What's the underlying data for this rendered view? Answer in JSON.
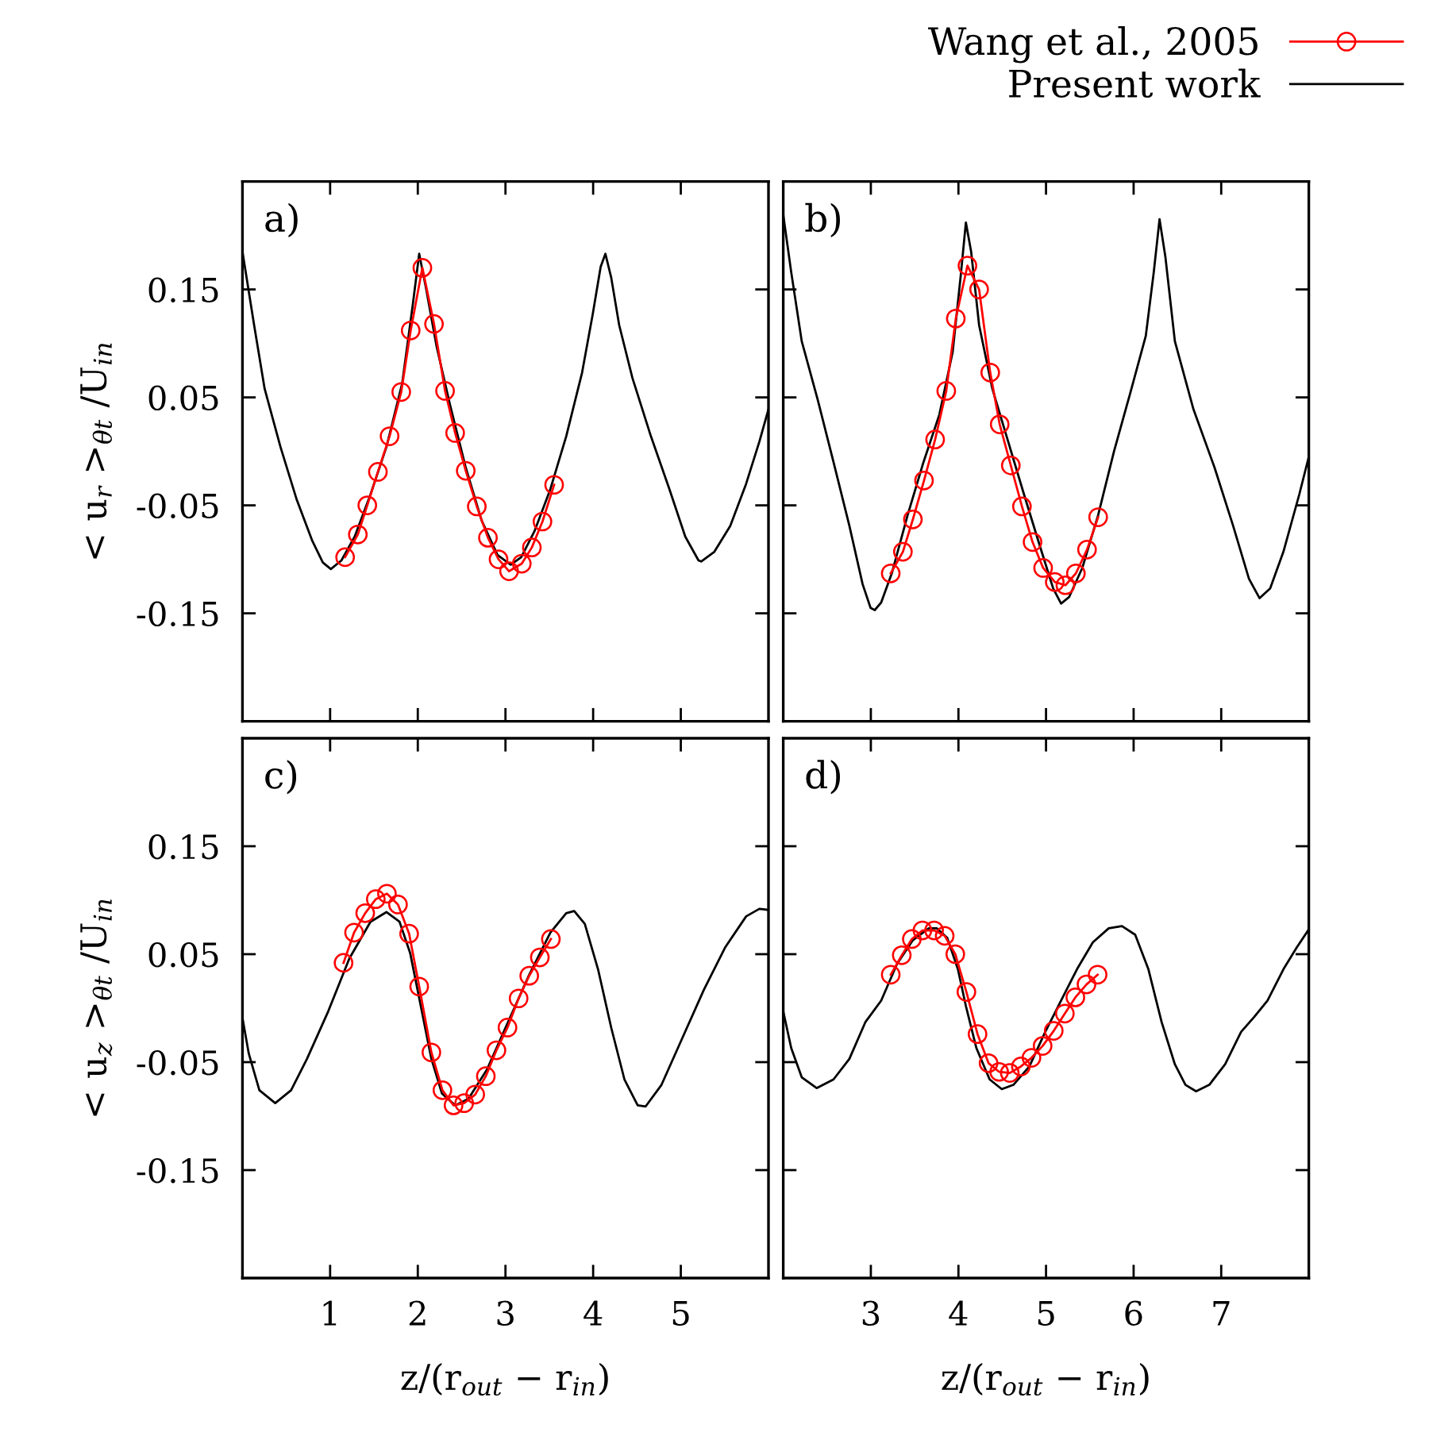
{
  "chart_data": [
    {
      "type": "line",
      "title": "a)",
      "legend": "top right",
      "ylabel": "< u$_{r}$ >$_{θt}$ /U$_{in}$",
      "xlim": [
        0,
        6
      ],
      "ylim": [
        -0.25,
        0.25
      ],
      "xticks": [
        1,
        2,
        3,
        4,
        5
      ],
      "yticks": [
        0.15,
        0.05,
        -0.05,
        -0.15
      ],
      "tick_labels": "y",
      "series": [
        {
          "name": "Present work",
          "color": "#000000",
          "marker": "none",
          "line_style": "solid",
          "x": [
            0,
            0.133,
            0.253,
            0.434,
            0.616,
            0.797,
            0.917,
            1.008,
            1.129,
            1.28,
            1.46,
            1.642,
            1.822,
            1.943,
            2.016,
            2.094,
            2.215,
            2.365,
            2.547,
            2.728,
            2.909,
            3.06,
            3.18,
            3.331,
            3.512,
            3.693,
            3.874,
            3.995,
            4.086,
            4.14,
            4.206,
            4.297,
            4.448,
            4.659,
            4.87,
            5.051,
            5.202,
            5.232,
            5.383,
            5.564,
            5.745,
            5.896,
            6.0
          ],
          "values": [
            0.185,
            0.117,
            0.058,
            0.004,
            -0.044,
            -0.083,
            -0.103,
            -0.109,
            -0.101,
            -0.079,
            -0.04,
            0.004,
            0.063,
            0.136,
            0.183,
            0.151,
            0.097,
            0.044,
            -0.015,
            -0.064,
            -0.096,
            -0.105,
            -0.098,
            -0.074,
            -0.035,
            0.014,
            0.073,
            0.127,
            0.171,
            0.183,
            0.161,
            0.117,
            0.068,
            0.014,
            -0.035,
            -0.079,
            -0.101,
            -0.102,
            -0.093,
            -0.069,
            -0.03,
            0.009,
            0.039
          ]
        },
        {
          "name": "Wang et al., 2005",
          "color": "#ff0000",
          "marker": "circle",
          "line_style": "solid",
          "x": [
            1.171,
            1.316,
            1.424,
            1.545,
            1.678,
            1.811,
            1.919,
            2.052,
            2.185,
            2.311,
            2.426,
            2.547,
            2.673,
            2.8,
            2.921,
            3.041,
            3.186,
            3.301,
            3.422,
            3.555
          ],
          "values": [
            -0.098,
            -0.077,
            -0.05,
            -0.019,
            0.014,
            0.055,
            0.112,
            0.17,
            0.118,
            0.056,
            0.017,
            -0.018,
            -0.051,
            -0.08,
            -0.1,
            -0.111,
            -0.104,
            -0.089,
            -0.065,
            -0.031
          ]
        }
      ]
    },
    {
      "type": "line",
      "title": "b)",
      "xlim": [
        2,
        8
      ],
      "ylim": [
        -0.25,
        0.25
      ],
      "xticks": [
        3,
        4,
        5,
        6,
        7
      ],
      "yticks": [
        0.15,
        0.05,
        -0.05,
        -0.15
      ],
      "tick_labels": false,
      "series": [
        {
          "name": "Present work",
          "color": "#000000",
          "marker": "none",
          "line_style": "solid",
          "x": [
            2.0,
            2.091,
            2.211,
            2.393,
            2.574,
            2.755,
            2.906,
            2.997,
            3.045,
            3.118,
            3.239,
            3.42,
            3.601,
            3.782,
            3.934,
            4.024,
            4.085,
            4.145,
            4.236,
            4.387,
            4.568,
            4.749,
            4.931,
            5.082,
            5.172,
            5.263,
            5.414,
            5.595,
            5.776,
            5.958,
            6.139,
            6.23,
            6.296,
            6.363,
            6.471,
            6.683,
            6.924,
            7.136,
            7.317,
            7.438,
            7.559,
            7.71,
            7.891,
            8.0
          ],
          "values": [
            0.219,
            0.166,
            0.102,
            0.048,
            -0.01,
            -0.069,
            -0.123,
            -0.145,
            -0.147,
            -0.14,
            -0.113,
            -0.059,
            -0.01,
            0.034,
            0.092,
            0.161,
            0.212,
            0.185,
            0.117,
            0.058,
            0.009,
            -0.04,
            -0.088,
            -0.127,
            -0.141,
            -0.135,
            -0.108,
            -0.059,
            0.0,
            0.053,
            0.107,
            0.166,
            0.215,
            0.18,
            0.102,
            0.039,
            -0.015,
            -0.069,
            -0.118,
            -0.136,
            -0.127,
            -0.093,
            -0.04,
            -0.005
          ]
        },
        {
          "name": "Wang et al., 2005",
          "color": "#ff0000",
          "marker": "circle",
          "line_style": "solid",
          "x": [
            3.227,
            3.366,
            3.48,
            3.607,
            3.734,
            3.861,
            3.97,
            4.103,
            4.236,
            4.363,
            4.471,
            4.598,
            4.725,
            4.846,
            4.967,
            5.1,
            5.221,
            5.341,
            5.468,
            5.595
          ],
          "values": [
            -0.113,
            -0.093,
            -0.063,
            -0.027,
            0.011,
            0.056,
            0.123,
            0.172,
            0.15,
            0.073,
            0.025,
            -0.013,
            -0.051,
            -0.084,
            -0.108,
            -0.121,
            -0.124,
            -0.113,
            -0.091,
            -0.061
          ]
        }
      ]
    },
    {
      "type": "line",
      "title": "c)",
      "xlabel": "z/(r$_{out}$ − r$_{in}$)",
      "ylabel": "< u$_{z}$ >$_{θt}$ /U$_{in}$",
      "xlim": [
        0,
        6
      ],
      "ylim": [
        -0.25,
        0.25
      ],
      "xticks": [
        1,
        2,
        3,
        4,
        5
      ],
      "yticks": [
        0.15,
        0.05,
        -0.05,
        -0.15
      ],
      "series": [
        {
          "name": "Present work",
          "color": "#000000",
          "marker": "none",
          "line_style": "solid",
          "x": [
            0,
            0.072,
            0.193,
            0.374,
            0.555,
            0.736,
            0.978,
            1.219,
            1.46,
            1.642,
            1.792,
            1.913,
            2.034,
            2.155,
            2.275,
            2.426,
            2.577,
            2.788,
            3.029,
            3.271,
            3.512,
            3.693,
            3.784,
            3.905,
            4.056,
            4.206,
            4.357,
            4.508,
            4.599,
            4.78,
            5.021,
            5.263,
            5.504,
            5.745,
            5.896,
            6.0
          ],
          "values": [
            -0.009,
            -0.042,
            -0.076,
            -0.088,
            -0.076,
            -0.047,
            -0.003,
            0.046,
            0.08,
            0.089,
            0.08,
            0.051,
            0.002,
            -0.047,
            -0.079,
            -0.09,
            -0.084,
            -0.057,
            -0.013,
            0.031,
            0.07,
            0.088,
            0.09,
            0.078,
            0.036,
            -0.018,
            -0.066,
            -0.09,
            -0.091,
            -0.071,
            -0.027,
            0.017,
            0.056,
            0.085,
            0.092,
            0.091
          ]
        },
        {
          "name": "Wang et al., 2005",
          "color": "#ff0000",
          "marker": "circle",
          "line_style": "solid",
          "x": [
            1.153,
            1.273,
            1.4,
            1.521,
            1.648,
            1.774,
            1.901,
            2.016,
            2.155,
            2.281,
            2.408,
            2.529,
            2.655,
            2.776,
            2.897,
            3.023,
            3.15,
            3.271,
            3.392,
            3.518
          ],
          "values": [
            0.042,
            0.07,
            0.088,
            0.101,
            0.106,
            0.096,
            0.069,
            0.02,
            -0.041,
            -0.076,
            -0.09,
            -0.088,
            -0.08,
            -0.063,
            -0.039,
            -0.018,
            0.009,
            0.03,
            0.047,
            0.064
          ]
        }
      ]
    },
    {
      "type": "line",
      "title": "d)",
      "xlabel": "z/(r$_{out}$ − r$_{in}$)",
      "xlim": [
        2,
        8
      ],
      "ylim": [
        -0.25,
        0.25
      ],
      "xticks": [
        3,
        4,
        5,
        6,
        7
      ],
      "yticks": [
        0.15,
        0.05,
        -0.05,
        -0.15
      ],
      "tick_labels": "x",
      "series": [
        {
          "name": "Present work",
          "color": "#000000",
          "marker": "none",
          "line_style": "solid",
          "x": [
            2.0,
            2.091,
            2.211,
            2.381,
            2.574,
            2.755,
            2.937,
            3.118,
            3.299,
            3.48,
            3.662,
            3.752,
            3.873,
            3.994,
            4.085,
            4.205,
            4.356,
            4.495,
            4.628,
            4.81,
            4.991,
            5.172,
            5.353,
            5.535,
            5.716,
            5.867,
            6.018,
            6.169,
            6.32,
            6.471,
            6.592,
            6.713,
            6.864,
            7.045,
            7.227,
            7.378,
            7.529,
            7.71,
            7.861,
            8.0
          ],
          "values": [
            -0.003,
            -0.037,
            -0.064,
            -0.074,
            -0.066,
            -0.047,
            -0.013,
            0.007,
            0.041,
            0.063,
            0.074,
            0.074,
            0.065,
            0.036,
            0.002,
            -0.037,
            -0.066,
            -0.075,
            -0.071,
            -0.054,
            -0.022,
            0.007,
            0.036,
            0.061,
            0.074,
            0.076,
            0.068,
            0.036,
            -0.013,
            -0.052,
            -0.071,
            -0.077,
            -0.071,
            -0.052,
            -0.022,
            -0.008,
            0.007,
            0.036,
            0.056,
            0.073
          ]
        },
        {
          "name": "Wang et al., 2005",
          "color": "#ff0000",
          "marker": "circle",
          "line_style": "solid",
          "x": [
            3.227,
            3.353,
            3.468,
            3.589,
            3.722,
            3.843,
            3.964,
            4.091,
            4.218,
            4.344,
            4.465,
            4.586,
            4.713,
            4.834,
            4.961,
            5.088,
            5.215,
            5.335,
            5.462,
            5.589
          ],
          "values": [
            0.031,
            0.049,
            0.064,
            0.072,
            0.072,
            0.067,
            0.05,
            0.015,
            -0.024,
            -0.051,
            -0.059,
            -0.06,
            -0.054,
            -0.046,
            -0.035,
            -0.021,
            -0.005,
            0.01,
            0.022,
            0.031
          ]
        }
      ]
    }
  ]
}
